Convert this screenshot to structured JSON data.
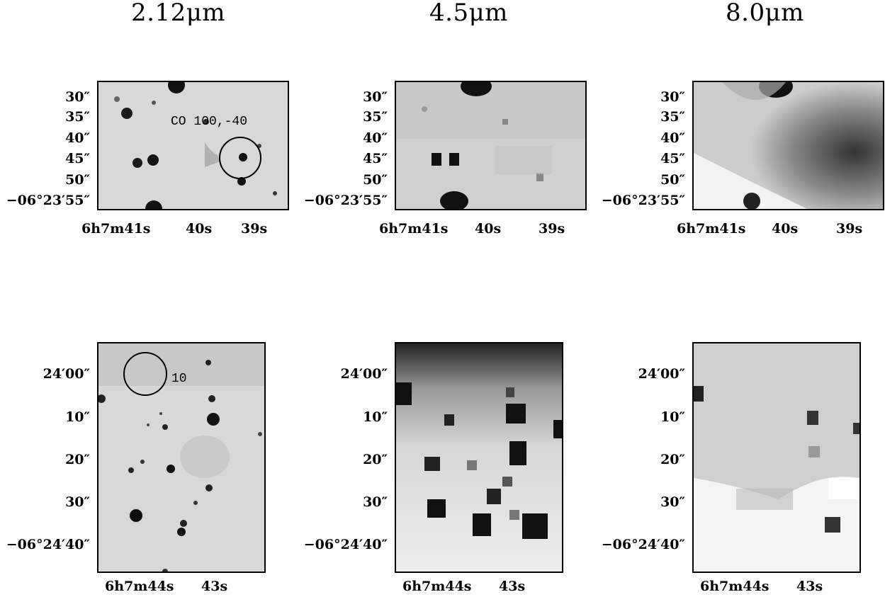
{
  "columns": [
    {
      "title": "2.12μm"
    },
    {
      "title": "4.5μm"
    },
    {
      "title": "8.0μm"
    }
  ],
  "top_row": {
    "y_ticks": [
      "30″",
      "35″",
      "40″",
      "45″",
      "50″",
      "−06°23′55″"
    ],
    "x_ticks": [
      "6h7m41s",
      "40s",
      "39s"
    ],
    "annotation": "CO 100,-40"
  },
  "bottom_row": {
    "y_ticks": [
      "24′00″",
      "10″",
      "20″",
      "30″",
      "−06°24′40″"
    ],
    "x_ticks": [
      "6h7m44s",
      "43s"
    ],
    "annotation": "10"
  }
}
